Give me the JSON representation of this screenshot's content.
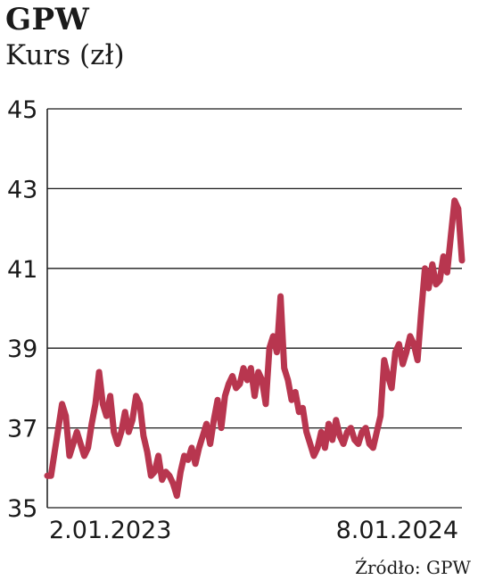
{
  "title": "GPW",
  "subtitle": "Kurs (zł)",
  "source": "Źródło: GPW",
  "colors": {
    "line": "#b8364f",
    "grid": "#1a1a1a",
    "text": "#1a1a1a"
  },
  "chart_data": {
    "type": "line",
    "ylim": [
      35,
      45
    ],
    "yticks": [
      35,
      37,
      39,
      41,
      43,
      45
    ],
    "x_tick_labels": [
      {
        "label": "2.01.2023",
        "position": "start"
      },
      {
        "label": "8.01.2024",
        "position": "end"
      }
    ],
    "grid": true,
    "series": [
      {
        "values": [
          35.8,
          35.8,
          36.4,
          37.0,
          37.6,
          37.3,
          36.3,
          36.6,
          36.9,
          36.6,
          36.3,
          36.5,
          37.1,
          37.6,
          38.4,
          37.6,
          37.3,
          37.8,
          36.9,
          36.6,
          36.9,
          37.4,
          36.9,
          37.2,
          37.8,
          37.6,
          36.8,
          36.4,
          35.8,
          35.9,
          36.3,
          35.7,
          35.9,
          35.8,
          35.6,
          35.3,
          35.9,
          36.3,
          36.2,
          36.5,
          36.1,
          36.5,
          36.8,
          37.1,
          36.6,
          37.2,
          37.7,
          37.0,
          37.8,
          38.1,
          38.3,
          38.0,
          38.1,
          38.5,
          38.2,
          38.5,
          37.8,
          38.4,
          38.2,
          37.6,
          39.0,
          39.3,
          38.9,
          40.3,
          38.5,
          38.2,
          37.7,
          37.9,
          37.4,
          37.5,
          36.9,
          36.6,
          36.3,
          36.5,
          36.9,
          36.5,
          37.1,
          36.7,
          37.2,
          36.8,
          36.6,
          36.9,
          37.0,
          36.7,
          36.6,
          36.9,
          37.0,
          36.6,
          36.5,
          36.9,
          37.3,
          38.7,
          38.3,
          38.0,
          38.9,
          39.1,
          38.6,
          38.9,
          39.3,
          39.1,
          38.7,
          39.9,
          41.0,
          40.5,
          41.1,
          40.6,
          40.7,
          41.3,
          40.9,
          41.8,
          42.7,
          42.5,
          41.2
        ]
      }
    ]
  }
}
